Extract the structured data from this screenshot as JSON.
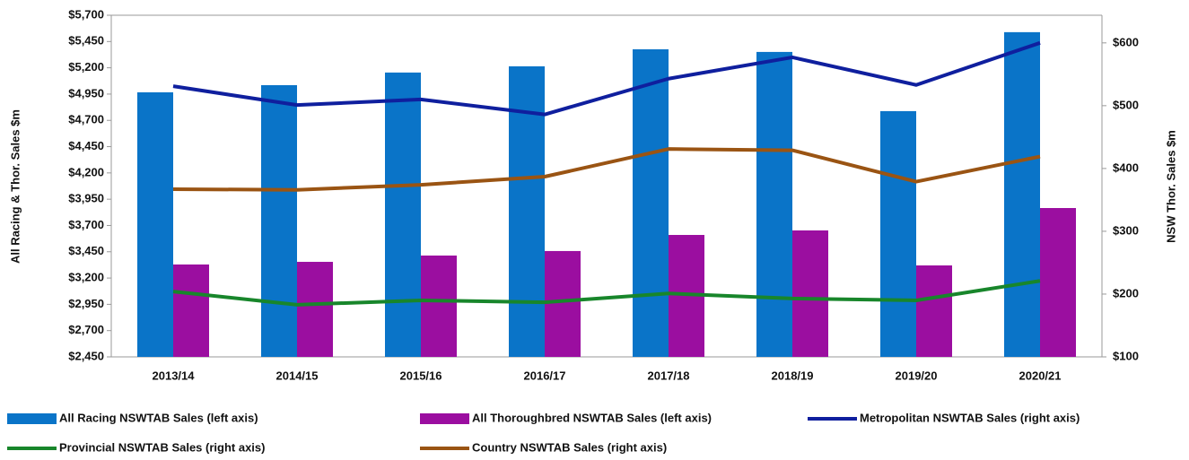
{
  "chart_data": {
    "type": "bar",
    "categories": [
      "2013/14",
      "2014/15",
      "2015/16",
      "2016/17",
      "2017/18",
      "2018/19",
      "2019/20",
      "2020/21"
    ],
    "ylabel": "All Racing & Thor. Sales $m",
    "y2label": "NSW Thor. Sales $m",
    "ylim": [
      2450,
      5700
    ],
    "yticks": [
      {
        "value": 2450,
        "label": "$2,450"
      },
      {
        "value": 2700,
        "label": "$2,700"
      },
      {
        "value": 2950,
        "label": "$2,950"
      },
      {
        "value": 3200,
        "label": "$3,200"
      },
      {
        "value": 3450,
        "label": "$3,450"
      },
      {
        "value": 3700,
        "label": "$3,700"
      },
      {
        "value": 3950,
        "label": "$3,950"
      },
      {
        "value": 4200,
        "label": "$4,200"
      },
      {
        "value": 4450,
        "label": "$4,450"
      },
      {
        "value": 4700,
        "label": "$4,700"
      },
      {
        "value": 4950,
        "label": "$4,950"
      },
      {
        "value": 5200,
        "label": "$5,200"
      },
      {
        "value": 5450,
        "label": "$5,450"
      },
      {
        "value": 5700,
        "label": "$5,700"
      }
    ],
    "y2lim": [
      100,
      644
    ],
    "y2ticks": [
      {
        "value": 100,
        "label": "$100"
      },
      {
        "value": 200,
        "label": "$200"
      },
      {
        "value": 300,
        "label": "$300"
      },
      {
        "value": 400,
        "label": "$400"
      },
      {
        "value": 500,
        "label": "$500"
      },
      {
        "value": 600,
        "label": "$600"
      }
    ],
    "series": [
      {
        "name": "All Racing NSWTAB Sales (left axis)",
        "type": "bar",
        "color": "#0a74c8",
        "values": [
          4967,
          5035,
          5155,
          5214,
          5376,
          5351,
          4788,
          5539
        ]
      },
      {
        "name": "All Thoroughbred NSWTAB Sales (left axis)",
        "type": "bar",
        "color": "#9b0ea0",
        "values": [
          3329,
          3354,
          3414,
          3457,
          3610,
          3653,
          3320,
          3866
        ]
      },
      {
        "name": "Metropolitan NSWTAB Sales (right axis)",
        "type": "line",
        "axis": "y2",
        "color": "#0f1f9e",
        "values": [
          531,
          501,
          510,
          486,
          543,
          577,
          533,
          600
        ]
      },
      {
        "name": "Provincial NSWTAB Sales (right axis)",
        "type": "line",
        "axis": "y2",
        "color": "#18862b",
        "values": [
          204,
          183,
          190,
          187,
          201,
          193,
          190,
          221
        ]
      },
      {
        "name": "Country NSWTAB Sales (right axis)",
        "type": "line",
        "axis": "y2",
        "color": "#9a5413",
        "values": [
          367,
          366,
          374,
          387,
          431,
          429,
          379,
          419
        ]
      }
    ]
  }
}
